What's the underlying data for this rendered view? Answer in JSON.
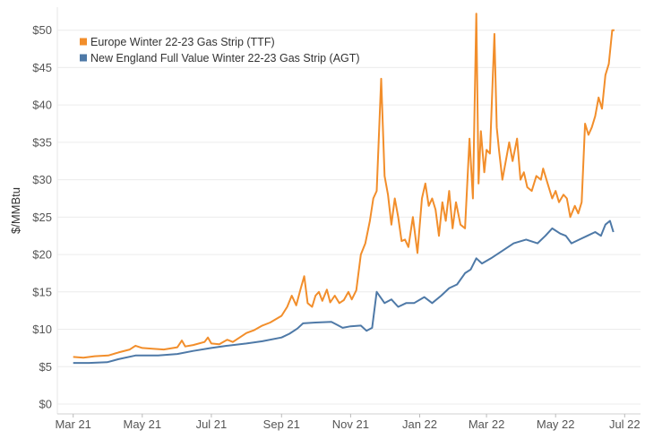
{
  "chart_data": {
    "type": "line",
    "title": "",
    "xlabel": "",
    "ylabel": "$/MMBtu",
    "ylim": [
      0,
      52
    ],
    "yticks": [
      0,
      5,
      10,
      15,
      20,
      25,
      30,
      35,
      40,
      45,
      50
    ],
    "ytick_labels": [
      "$0",
      "$5",
      "$10",
      "$15",
      "$20",
      "$25",
      "$30",
      "$35",
      "$40",
      "$45",
      "$50"
    ],
    "xlim": [
      "2021-02-15",
      "2022-07-15"
    ],
    "xticks": [
      {
        "date": "2021-03-01",
        "label": "Mar 21"
      },
      {
        "date": "2021-05-01",
        "label": "May 21"
      },
      {
        "date": "2021-07-01",
        "label": "Jul 21"
      },
      {
        "date": "2021-09-01",
        "label": "Sep 21"
      },
      {
        "date": "2021-11-01",
        "label": "Nov 21"
      },
      {
        "date": "2022-01-01",
        "label": "Jan 22"
      },
      {
        "date": "2022-03-01",
        "label": "Mar 22"
      },
      {
        "date": "2022-05-01",
        "label": "May 22"
      },
      {
        "date": "2022-07-01",
        "label": "Jul 22"
      }
    ],
    "grid": "horizontal",
    "legend_position": "top-left",
    "series": [
      {
        "name": "Europe Winter 22-23 Gas Strip (TTF)",
        "color": "#F28E2B",
        "points": [
          [
            "2021-03-01",
            6.3
          ],
          [
            "2021-03-10",
            6.2
          ],
          [
            "2021-03-20",
            6.4
          ],
          [
            "2021-04-01",
            6.5
          ],
          [
            "2021-04-10",
            6.9
          ],
          [
            "2021-04-20",
            7.3
          ],
          [
            "2021-04-25",
            7.8
          ],
          [
            "2021-05-01",
            7.5
          ],
          [
            "2021-05-10",
            7.4
          ],
          [
            "2021-05-20",
            7.3
          ],
          [
            "2021-06-01",
            7.6
          ],
          [
            "2021-06-05",
            8.5
          ],
          [
            "2021-06-08",
            7.7
          ],
          [
            "2021-06-15",
            7.9
          ],
          [
            "2021-06-25",
            8.3
          ],
          [
            "2021-06-28",
            8.9
          ],
          [
            "2021-07-01",
            8.1
          ],
          [
            "2021-07-08",
            8.0
          ],
          [
            "2021-07-15",
            8.6
          ],
          [
            "2021-07-20",
            8.3
          ],
          [
            "2021-07-28",
            9.1
          ],
          [
            "2021-08-01",
            9.5
          ],
          [
            "2021-08-08",
            9.9
          ],
          [
            "2021-08-15",
            10.5
          ],
          [
            "2021-08-22",
            10.9
          ],
          [
            "2021-09-01",
            11.8
          ],
          [
            "2021-09-06",
            13.0
          ],
          [
            "2021-09-10",
            14.5
          ],
          [
            "2021-09-14",
            13.2
          ],
          [
            "2021-09-18",
            15.5
          ],
          [
            "2021-09-21",
            17.1
          ],
          [
            "2021-09-24",
            13.5
          ],
          [
            "2021-09-28",
            13.0
          ],
          [
            "2021-10-01",
            14.5
          ],
          [
            "2021-10-04",
            15.0
          ],
          [
            "2021-10-07",
            13.8
          ],
          [
            "2021-10-11",
            15.3
          ],
          [
            "2021-10-14",
            13.6
          ],
          [
            "2021-10-18",
            14.5
          ],
          [
            "2021-10-22",
            13.5
          ],
          [
            "2021-10-26",
            13.9
          ],
          [
            "2021-10-30",
            15.0
          ],
          [
            "2021-11-02",
            14.0
          ],
          [
            "2021-11-06",
            15.2
          ],
          [
            "2021-11-10",
            20.0
          ],
          [
            "2021-11-14",
            21.5
          ],
          [
            "2021-11-18",
            24.5
          ],
          [
            "2021-11-21",
            27.5
          ],
          [
            "2021-11-24",
            28.5
          ],
          [
            "2021-11-28",
            43.5
          ],
          [
            "2021-12-01",
            30.5
          ],
          [
            "2021-12-04",
            28.0
          ],
          [
            "2021-12-07",
            24.0
          ],
          [
            "2021-12-10",
            27.5
          ],
          [
            "2021-12-13",
            25.0
          ],
          [
            "2021-12-16",
            21.8
          ],
          [
            "2021-12-19",
            22.0
          ],
          [
            "2021-12-22",
            21.0
          ],
          [
            "2021-12-26",
            25.0
          ],
          [
            "2021-12-30",
            20.2
          ],
          [
            "2022-01-03",
            27.5
          ],
          [
            "2022-01-06",
            29.5
          ],
          [
            "2022-01-09",
            26.5
          ],
          [
            "2022-01-12",
            27.5
          ],
          [
            "2022-01-15",
            26.0
          ],
          [
            "2022-01-18",
            22.5
          ],
          [
            "2022-01-21",
            27.0
          ],
          [
            "2022-01-24",
            24.5
          ],
          [
            "2022-01-27",
            28.5
          ],
          [
            "2022-01-30",
            23.5
          ],
          [
            "2022-02-02",
            27.0
          ],
          [
            "2022-02-06",
            24.0
          ],
          [
            "2022-02-10",
            23.5
          ],
          [
            "2022-02-14",
            35.5
          ],
          [
            "2022-02-17",
            27.5
          ],
          [
            "2022-02-20",
            52.2
          ],
          [
            "2022-02-22",
            29.5
          ],
          [
            "2022-02-24",
            36.5
          ],
          [
            "2022-02-27",
            31.0
          ],
          [
            "2022-03-01",
            34.0
          ],
          [
            "2022-03-04",
            33.5
          ],
          [
            "2022-03-08",
            49.5
          ],
          [
            "2022-03-10",
            37.0
          ],
          [
            "2022-03-12",
            34.0
          ],
          [
            "2022-03-15",
            30.0
          ],
          [
            "2022-03-18",
            32.5
          ],
          [
            "2022-03-21",
            35.0
          ],
          [
            "2022-03-24",
            32.5
          ],
          [
            "2022-03-28",
            35.5
          ],
          [
            "2022-03-31",
            30.0
          ],
          [
            "2022-04-03",
            31.0
          ],
          [
            "2022-04-06",
            29.0
          ],
          [
            "2022-04-10",
            28.5
          ],
          [
            "2022-04-14",
            30.5
          ],
          [
            "2022-04-18",
            30.0
          ],
          [
            "2022-04-20",
            31.5
          ],
          [
            "2022-04-24",
            29.5
          ],
          [
            "2022-04-28",
            27.5
          ],
          [
            "2022-05-01",
            28.5
          ],
          [
            "2022-05-04",
            27.0
          ],
          [
            "2022-05-08",
            28.0
          ],
          [
            "2022-05-11",
            27.5
          ],
          [
            "2022-05-14",
            25.0
          ],
          [
            "2022-05-18",
            26.5
          ],
          [
            "2022-05-21",
            25.5
          ],
          [
            "2022-05-24",
            27.0
          ],
          [
            "2022-05-27",
            37.5
          ],
          [
            "2022-05-30",
            36.0
          ],
          [
            "2022-06-02",
            37.0
          ],
          [
            "2022-06-05",
            38.5
          ],
          [
            "2022-06-08",
            41.0
          ],
          [
            "2022-06-11",
            39.5
          ],
          [
            "2022-06-14",
            44.0
          ],
          [
            "2022-06-17",
            45.5
          ],
          [
            "2022-06-20",
            50.0
          ],
          [
            "2022-06-22",
            50.0
          ]
        ]
      },
      {
        "name": "New England Full Value Winter 22-23 Gas Strip (AGT)",
        "color": "#4E79A7",
        "points": [
          [
            "2021-03-01",
            5.5
          ],
          [
            "2021-03-15",
            5.5
          ],
          [
            "2021-03-31",
            5.6
          ],
          [
            "2021-04-10",
            6.0
          ],
          [
            "2021-04-25",
            6.5
          ],
          [
            "2021-05-15",
            6.5
          ],
          [
            "2021-06-01",
            6.7
          ],
          [
            "2021-06-15",
            7.1
          ],
          [
            "2021-07-01",
            7.5
          ],
          [
            "2021-07-15",
            7.8
          ],
          [
            "2021-08-01",
            8.1
          ],
          [
            "2021-08-15",
            8.4
          ],
          [
            "2021-09-01",
            8.9
          ],
          [
            "2021-09-08",
            9.4
          ],
          [
            "2021-09-15",
            10.1
          ],
          [
            "2021-09-20",
            10.8
          ],
          [
            "2021-10-01",
            10.9
          ],
          [
            "2021-10-15",
            11.0
          ],
          [
            "2021-10-20",
            10.6
          ],
          [
            "2021-10-25",
            10.2
          ],
          [
            "2021-11-01",
            10.4
          ],
          [
            "2021-11-10",
            10.5
          ],
          [
            "2021-11-15",
            9.8
          ],
          [
            "2021-11-20",
            10.2
          ],
          [
            "2021-11-24",
            15.0
          ],
          [
            "2021-12-01",
            13.5
          ],
          [
            "2021-12-07",
            14.0
          ],
          [
            "2021-12-13",
            13.0
          ],
          [
            "2021-12-20",
            13.5
          ],
          [
            "2021-12-27",
            13.5
          ],
          [
            "2022-01-05",
            14.3
          ],
          [
            "2022-01-12",
            13.5
          ],
          [
            "2022-01-20",
            14.5
          ],
          [
            "2022-01-27",
            15.5
          ],
          [
            "2022-02-03",
            16.0
          ],
          [
            "2022-02-10",
            17.5
          ],
          [
            "2022-02-15",
            18.0
          ],
          [
            "2022-02-20",
            19.5
          ],
          [
            "2022-02-25",
            18.8
          ],
          [
            "2022-03-05",
            19.5
          ],
          [
            "2022-03-15",
            20.5
          ],
          [
            "2022-03-25",
            21.5
          ],
          [
            "2022-04-05",
            22.0
          ],
          [
            "2022-04-15",
            21.5
          ],
          [
            "2022-04-22",
            22.5
          ],
          [
            "2022-04-28",
            23.5
          ],
          [
            "2022-05-05",
            22.8
          ],
          [
            "2022-05-10",
            22.5
          ],
          [
            "2022-05-15",
            21.5
          ],
          [
            "2022-05-22",
            22.0
          ],
          [
            "2022-05-29",
            22.5
          ],
          [
            "2022-06-05",
            23.0
          ],
          [
            "2022-06-10",
            22.5
          ],
          [
            "2022-06-14",
            24.0
          ],
          [
            "2022-06-18",
            24.5
          ],
          [
            "2022-06-21",
            23.0
          ]
        ]
      }
    ]
  }
}
